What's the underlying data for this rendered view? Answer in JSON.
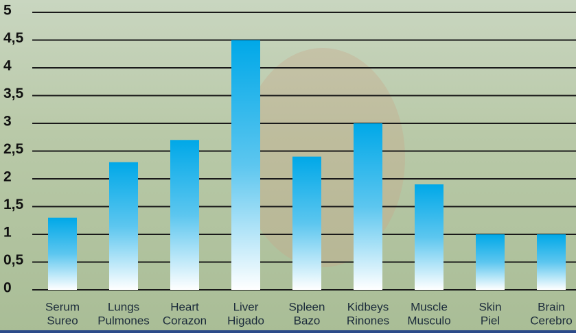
{
  "chart_data": {
    "type": "bar",
    "categories": [
      [
        "Serum",
        "Sureo"
      ],
      [
        "Lungs",
        "Pulmones"
      ],
      [
        "Heart",
        "Corazon"
      ],
      [
        "Liver",
        "Higado"
      ],
      [
        "Spleen",
        "Bazo"
      ],
      [
        "Kidbeys",
        "Rinones"
      ],
      [
        "Muscle",
        "Musculo"
      ],
      [
        "Skin",
        "Piel"
      ],
      [
        "Brain",
        "Cerebro"
      ]
    ],
    "values": [
      1.3,
      2.3,
      2.7,
      4.5,
      2.4,
      3,
      1.9,
      1,
      1
    ],
    "color": "#00a8e8",
    "ylim": [
      0,
      5
    ],
    "yticks": [
      0,
      {
        "value": 0.5,
        "label": "0,5"
      },
      1,
      {
        "value": 1.5,
        "label": "1,5"
      },
      2,
      {
        "value": 2.5,
        "label": "2,5"
      },
      3,
      {
        "value": 3.5,
        "label": "3,5"
      },
      4,
      {
        "value": 4.5,
        "label": "4,5"
      },
      5
    ],
    "grid": true
  }
}
